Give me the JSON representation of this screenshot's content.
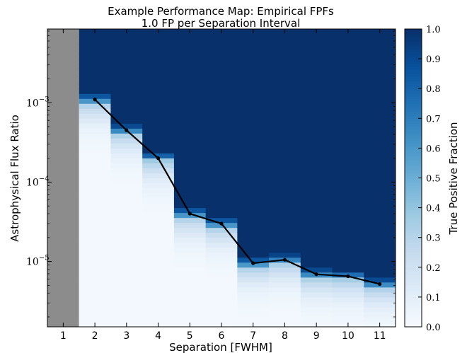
{
  "chart_data": {
    "type": "heatmap",
    "title": "Example Performance Map: Empirical FPFs",
    "subtitle": "1.0 FP per Separation Interval",
    "xlabel": "Separation [FWHM]",
    "ylabel": "Astrophysical Flux Ratio",
    "x_ticks": [
      "1",
      "2",
      "3",
      "4",
      "5",
      "6",
      "7",
      "8",
      "9",
      "10",
      "11"
    ],
    "y_scale": "log",
    "ylim": [
      1.5e-06,
      0.0085
    ],
    "y_ticks": [
      {
        "value": 0.001,
        "base": "10",
        "exp": "−3"
      },
      {
        "value": 0.0001,
        "base": "10",
        "exp": "−4"
      },
      {
        "value": 1e-05,
        "base": "10",
        "exp": "−5"
      }
    ],
    "masked_separation": 1,
    "colorbar": {
      "label": "True Positive Fraction",
      "range": [
        0.0,
        1.0
      ],
      "ticks": [
        "0.0",
        "0.1",
        "0.2",
        "0.3",
        "0.4",
        "0.5",
        "0.6",
        "0.7",
        "0.8",
        "0.9",
        "1.0"
      ],
      "colormap": [
        "#f7fbff",
        "#deebf7",
        "#c6dbef",
        "#9ecae1",
        "#6baed6",
        "#4292c6",
        "#2171b5",
        "#08519c",
        "#08306b"
      ]
    },
    "grid": false,
    "detection_curve": {
      "x": [
        2,
        3,
        4,
        5,
        6,
        7,
        8,
        9,
        10,
        11
      ],
      "y": [
        0.0011,
        0.00045,
        0.0002,
        4e-05,
        3e-05,
        9.5e-06,
        1.05e-05,
        6.9e-06,
        6.5e-06,
        5.2e-06
      ]
    }
  }
}
